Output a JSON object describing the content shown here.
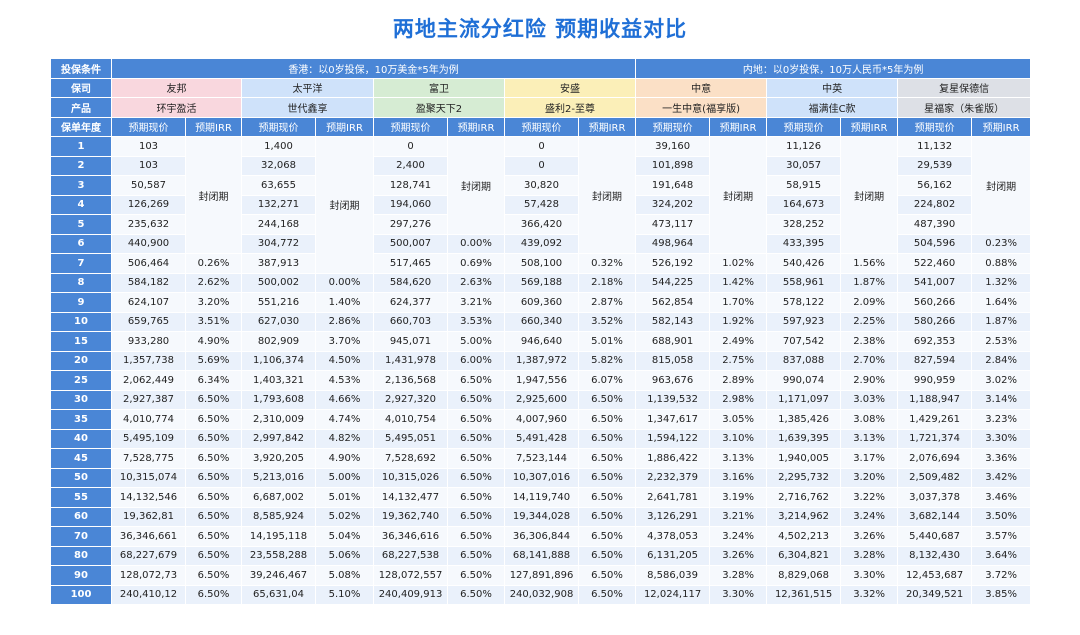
{
  "title": "两地主流分红险  预期收益对比",
  "labels": {
    "condition": "投保条件",
    "company": "保司",
    "product": "产品",
    "year": "保单年度"
  },
  "conditions": {
    "hk": "香港：以0岁投保，10万美金*5年为例",
    "cn": "内地：以0岁投保，10万人民币*5年为例"
  },
  "companies": [
    "友邦",
    "太平洋",
    "富卫",
    "安盛",
    "中意",
    "中英",
    "复星保德信"
  ],
  "products": [
    "环宇盈活",
    "世代鑫享",
    "盈聚天下2",
    "盛利2-至尊",
    "一生中意(福享版)",
    "福满佳C款",
    "星福家（朱雀版）"
  ],
  "col_headers": {
    "cv": "预期现价",
    "irr": "预期IRR"
  },
  "lock_text": "封闭期",
  "colors": {
    "title": "#1f6fd6",
    "header_blue": "#4a86d6",
    "pink": "#f9d7de",
    "light_blue": "#cfe2fa",
    "green": "#d6ecd3",
    "yellow": "#fbefb8",
    "peach": "#fbe0c6",
    "grey": "#dde0e6"
  },
  "rows": [
    {
      "year": "1",
      "c1": "103",
      "c2": "1,400",
      "c3": "0",
      "c4": "0",
      "c5": "39,160",
      "c6": "11,126",
      "c7": "11,132"
    },
    {
      "year": "2",
      "c1": "103",
      "c2": "32,068",
      "c3": "2,400",
      "c4": "0",
      "c5": "101,898",
      "c6": "30,057",
      "c7": "29,539"
    },
    {
      "year": "3",
      "c1": "50,587",
      "c2": "63,655",
      "c3": "128,741",
      "c4": "30,820",
      "c5": "191,648",
      "c6": "58,915",
      "c7": "56,162"
    },
    {
      "year": "4",
      "c1": "126,269",
      "c2": "132,271",
      "c3": "194,060",
      "c4": "57,428",
      "c5": "324,202",
      "c6": "164,673",
      "c7": "224,802"
    },
    {
      "year": "5",
      "c1": "235,632",
      "c2": "244,168",
      "c3": "297,276",
      "c4": "366,420",
      "c5": "473,117",
      "c6": "328,252",
      "c7": "487,390"
    },
    {
      "year": "6",
      "c1": "440,900",
      "c2": "304,772",
      "c3": "500,007",
      "i3": "0.00%",
      "c4": "439,092",
      "c5": "498,964",
      "c6": "433,395",
      "c7": "504,596",
      "i7": "0.23%"
    },
    {
      "year": "7",
      "c1": "506,464",
      "i1": "0.26%",
      "c2": "387,913",
      "c3": "517,465",
      "i3": "0.69%",
      "c4": "508,100",
      "i4": "0.32%",
      "c5": "526,192",
      "i5": "1.02%",
      "c6": "540,426",
      "i6": "1.56%",
      "c7": "522,460",
      "i7": "0.88%"
    },
    {
      "year": "8",
      "c1": "584,182",
      "i1": "2.62%",
      "c2": "500,002",
      "i2": "0.00%",
      "c3": "584,620",
      "i3": "2.63%",
      "c4": "569,188",
      "i4": "2.18%",
      "c5": "544,225",
      "i5": "1.42%",
      "c6": "558,961",
      "i6": "1.87%",
      "c7": "541,007",
      "i7": "1.32%"
    },
    {
      "year": "9",
      "c1": "624,107",
      "i1": "3.20%",
      "c2": "551,216",
      "i2": "1.40%",
      "c3": "624,377",
      "i3": "3.21%",
      "c4": "609,360",
      "i4": "2.87%",
      "c5": "562,854",
      "i5": "1.70%",
      "c6": "578,122",
      "i6": "2.09%",
      "c7": "560,266",
      "i7": "1.64%"
    },
    {
      "year": "10",
      "c1": "659,765",
      "i1": "3.51%",
      "c2": "627,030",
      "i2": "2.86%",
      "c3": "660,703",
      "i3": "3.53%",
      "c4": "660,340",
      "i4": "3.52%",
      "c5": "582,143",
      "i5": "1.92%",
      "c6": "597,923",
      "i6": "2.25%",
      "c7": "580,266",
      "i7": "1.87%"
    },
    {
      "year": "15",
      "c1": "933,280",
      "i1": "4.90%",
      "c2": "802,909",
      "i2": "3.70%",
      "c3": "945,071",
      "i3": "5.00%",
      "c4": "946,640",
      "i4": "5.01%",
      "c5": "688,901",
      "i5": "2.49%",
      "c6": "707,542",
      "i6": "2.38%",
      "c7": "692,353",
      "i7": "2.53%"
    },
    {
      "year": "20",
      "c1": "1,357,738",
      "i1": "5.69%",
      "c2": "1,106,374",
      "i2": "4.50%",
      "c3": "1,431,978",
      "i3": "6.00%",
      "c4": "1,387,972",
      "i4": "5.82%",
      "c5": "815,058",
      "i5": "2.75%",
      "c6": "837,088",
      "i6": "2.70%",
      "c7": "827,594",
      "i7": "2.84%"
    },
    {
      "year": "25",
      "c1": "2,062,449",
      "i1": "6.34%",
      "c2": "1,403,321",
      "i2": "4.53%",
      "c3": "2,136,568",
      "i3": "6.50%",
      "c4": "1,947,556",
      "i4": "6.07%",
      "c5": "963,676",
      "i5": "2.89%",
      "c6": "990,074",
      "i6": "2.90%",
      "c7": "990,959",
      "i7": "3.02%"
    },
    {
      "year": "30",
      "c1": "2,927,387",
      "i1": "6.50%",
      "c2": "1,793,608",
      "i2": "4.66%",
      "c3": "2,927,320",
      "i3": "6.50%",
      "c4": "2,925,600",
      "i4": "6.50%",
      "c5": "1,139,532",
      "i5": "2.98%",
      "c6": "1,171,097",
      "i6": "3.03%",
      "c7": "1,188,947",
      "i7": "3.14%"
    },
    {
      "year": "35",
      "c1": "4,010,774",
      "i1": "6.50%",
      "c2": "2,310,009",
      "i2": "4.74%",
      "c3": "4,010,754",
      "i3": "6.50%",
      "c4": "4,007,960",
      "i4": "6.50%",
      "c5": "1,347,617",
      "i5": "3.05%",
      "c6": "1,385,426",
      "i6": "3.08%",
      "c7": "1,429,261",
      "i7": "3.23%"
    },
    {
      "year": "40",
      "c1": "5,495,109",
      "i1": "6.50%",
      "c2": "2,997,842",
      "i2": "4.82%",
      "c3": "5,495,051",
      "i3": "6.50%",
      "c4": "5,491,428",
      "i4": "6.50%",
      "c5": "1,594,122",
      "i5": "3.10%",
      "c6": "1,639,395",
      "i6": "3.13%",
      "c7": "1,721,374",
      "i7": "3.30%"
    },
    {
      "year": "45",
      "c1": "7,528,775",
      "i1": "6.50%",
      "c2": "3,920,205",
      "i2": "4.90%",
      "c3": "7,528,692",
      "i3": "6.50%",
      "c4": "7,523,144",
      "i4": "6.50%",
      "c5": "1,886,422",
      "i5": "3.13%",
      "c6": "1,940,005",
      "i6": "3.17%",
      "c7": "2,076,694",
      "i7": "3.36%"
    },
    {
      "year": "50",
      "c1": "10,315,074",
      "i1": "6.50%",
      "c2": "5,213,016",
      "i2": "5.00%",
      "c3": "10,315,026",
      "i3": "6.50%",
      "c4": "10,307,016",
      "i4": "6.50%",
      "c5": "2,232,379",
      "i5": "3.16%",
      "c6": "2,295,732",
      "i6": "3.20%",
      "c7": "2,509,482",
      "i7": "3.42%"
    },
    {
      "year": "55",
      "c1": "14,132,546",
      "i1": "6.50%",
      "c2": "6,687,002",
      "i2": "5.01%",
      "c3": "14,132,477",
      "i3": "6.50%",
      "c4": "14,119,740",
      "i4": "6.50%",
      "c5": "2,641,781",
      "i5": "3.19%",
      "c6": "2,716,762",
      "i6": "3.22%",
      "c7": "3,037,378",
      "i7": "3.46%"
    },
    {
      "year": "60",
      "c1": "19,362,81",
      "i1": "6.50%",
      "c2": "8,585,924",
      "i2": "5.02%",
      "c3": "19,362,740",
      "i3": "6.50%",
      "c4": "19,344,028",
      "i4": "6.50%",
      "c5": "3,126,291",
      "i5": "3.21%",
      "c6": "3,214,962",
      "i6": "3.24%",
      "c7": "3,682,144",
      "i7": "3.50%"
    },
    {
      "year": "70",
      "c1": "36,346,661",
      "i1": "6.50%",
      "c2": "14,195,118",
      "i2": "5.04%",
      "c3": "36,346,616",
      "i3": "6.50%",
      "c4": "36,306,844",
      "i4": "6.50%",
      "c5": "4,378,053",
      "i5": "3.24%",
      "c6": "4,502,213",
      "i6": "3.26%",
      "c7": "5,440,687",
      "i7": "3.57%"
    },
    {
      "year": "80",
      "c1": "68,227,679",
      "i1": "6.50%",
      "c2": "23,558,288",
      "i2": "5.06%",
      "c3": "68,227,538",
      "i3": "6.50%",
      "c4": "68,141,888",
      "i4": "6.50%",
      "c5": "6,131,205",
      "i5": "3.26%",
      "c6": "6,304,821",
      "i6": "3.28%",
      "c7": "8,132,430",
      "i7": "3.64%"
    },
    {
      "year": "90",
      "c1": "128,072,73",
      "i1": "6.50%",
      "c2": "39,246,467",
      "i2": "5.08%",
      "c3": "128,072,557",
      "i3": "6.50%",
      "c4": "127,891,896",
      "i4": "6.50%",
      "c5": "8,586,039",
      "i5": "3.28%",
      "c6": "8,829,068",
      "i6": "3.30%",
      "c7": "12,453,687",
      "i7": "3.72%"
    },
    {
      "year": "100",
      "c1": "240,410,12",
      "i1": "6.50%",
      "c2": "65,631,04",
      "i2": "5.10%",
      "c3": "240,409,913",
      "i3": "6.50%",
      "c4": "240,032,908",
      "i4": "6.50%",
      "c5": "12,024,117",
      "i5": "3.30%",
      "c6": "12,361,515",
      "i6": "3.32%",
      "c7": "20,349,521",
      "i7": "3.85%"
    }
  ]
}
